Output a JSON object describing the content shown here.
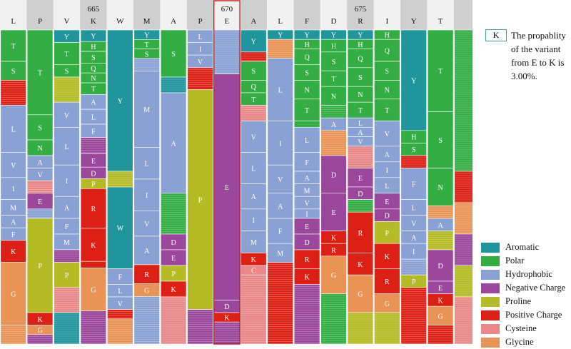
{
  "colors": {
    "Aromatic": "#21959c",
    "Polar": "#34ad44",
    "Hydrophobic": "#8aa2d3",
    "Negative Charge": "#9a479c",
    "Proline": "#b5bb24",
    "Positive Charge": "#dd2015",
    "Cysteine": "#e88888",
    "Glycine": "#e99356",
    "highlight": "#cc1111",
    "header_light": "#f1f1f1",
    "header_dark": "#cfcfcf"
  },
  "aa_groups": {
    "Y": "Aromatic",
    "W": "Aromatic",
    "F": "Hydrophobic",
    "H": "Polar",
    "T": "Polar",
    "S": "Polar",
    "N": "Polar",
    "Q": "Polar",
    "L": "Hydrophobic",
    "V": "Hydrophobic",
    "I": "Hydrophobic",
    "M": "Hydrophobic",
    "A": "Hydrophobic",
    "E": "Negative Charge",
    "D": "Negative Charge",
    "P": "Proline",
    "K": "Positive Charge",
    "R": "Positive Charge",
    "C": "Cysteine",
    "G": "Glycine"
  },
  "legend": [
    "Aromatic",
    "Polar",
    "Hydrophobic",
    "Negative Charge",
    "Proline",
    "Positive Charge",
    "Cysteine",
    "Glycine"
  ],
  "info": {
    "badge": "K",
    "text": "The propablity of the variant from E to K is 3.00%."
  },
  "chart_data": {
    "type": "stacked-bar",
    "highlight_position": 670,
    "residues": [
      {
        "aa": "L",
        "pos": "",
        "segments": [
          {
            "aa": "T",
            "p": 0.1
          },
          {
            "aa": "S",
            "p": 0.06
          },
          {
            "aa": "",
            "p": 0.08
          },
          {
            "aa": "L",
            "p": 0.15
          },
          {
            "aa": "V",
            "p": 0.08
          },
          {
            "aa": "I",
            "p": 0.07
          },
          {
            "aa": "M",
            "p": 0.05
          },
          {
            "aa": "A",
            "p": 0.04
          },
          {
            "aa": "F",
            "p": 0.04
          },
          {
            "aa": "K",
            "p": 0.07
          },
          {
            "aa": "G",
            "p": 0.2
          },
          {
            "aa": "",
            "p": 0.06
          }
        ]
      },
      {
        "aa": "P",
        "pos": "",
        "segments": [
          {
            "aa": "T",
            "p": 0.27
          },
          {
            "aa": "S",
            "p": 0.08
          },
          {
            "aa": "N",
            "p": 0.05
          },
          {
            "aa": "A",
            "p": 0.04
          },
          {
            "aa": "V",
            "p": 0.04
          },
          {
            "aa": "",
            "p": 0.04
          },
          {
            "aa": "E",
            "p": 0.05
          },
          {
            "aa": "",
            "p": 0.03
          },
          {
            "aa": "P",
            "p": 0.3
          },
          {
            "aa": "K",
            "p": 0.04
          },
          {
            "aa": "G",
            "p": 0.03
          },
          {
            "aa": "",
            "p": 0.03
          }
        ]
      },
      {
        "aa": "V",
        "pos": "",
        "segments": [
          {
            "aa": "Y",
            "p": 0.04
          },
          {
            "aa": "T",
            "p": 0.07
          },
          {
            "aa": "S",
            "p": 0.04
          },
          {
            "aa": "",
            "p": 0.08
          },
          {
            "aa": "V",
            "p": 0.08
          },
          {
            "aa": "L",
            "p": 0.12
          },
          {
            "aa": "I",
            "p": 0.1
          },
          {
            "aa": "A",
            "p": 0.07
          },
          {
            "aa": "F",
            "p": 0.05
          },
          {
            "aa": "M",
            "p": 0.05
          },
          {
            "aa": "",
            "p": 0.04
          },
          {
            "aa": "P",
            "p": 0.08
          },
          {
            "aa": "",
            "p": 0.08
          },
          {
            "aa": "",
            "p": 0.1
          }
        ]
      },
      {
        "aa": "K",
        "pos": "665",
        "segments": [
          {
            "aa": "Y",
            "p": 0.035
          },
          {
            "aa": "H",
            "p": 0.03
          },
          {
            "aa": "S",
            "p": 0.035
          },
          {
            "aa": "Q",
            "p": 0.03
          },
          {
            "aa": "N",
            "p": 0.03
          },
          {
            "aa": "T",
            "p": 0.035
          },
          {
            "aa": "A",
            "p": 0.045
          },
          {
            "aa": "L",
            "p": 0.045
          },
          {
            "aa": "F",
            "p": 0.04
          },
          {
            "aa": "",
            "p": 0.05
          },
          {
            "aa": "E",
            "p": 0.04
          },
          {
            "aa": "D",
            "p": 0.035
          },
          {
            "aa": "P",
            "p": 0.03
          },
          {
            "aa": "R",
            "p": 0.12
          },
          {
            "aa": "K",
            "p": 0.1
          },
          {
            "aa": "",
            "p": 0.02
          },
          {
            "aa": "G",
            "p": 0.13
          },
          {
            "aa": "",
            "p": 0.1
          }
        ]
      },
      {
        "aa": "W",
        "pos": "",
        "segments": [
          {
            "aa": "Y",
            "p": 0.45
          },
          {
            "aa": "",
            "p": 0.05
          },
          {
            "aa": "W",
            "p": 0.26
          },
          {
            "aa": "F",
            "p": 0.05
          },
          {
            "aa": "L",
            "p": 0.04
          },
          {
            "aa": "V",
            "p": 0.04
          },
          {
            "aa": "",
            "p": 0.03
          },
          {
            "aa": "",
            "p": 0.08
          }
        ]
      },
      {
        "aa": "M",
        "pos": "",
        "segments": [
          {
            "aa": "Y",
            "p": 0.03
          },
          {
            "aa": "T",
            "p": 0.03
          },
          {
            "aa": "S",
            "p": 0.03
          },
          {
            "aa": "",
            "p": 0.04
          },
          {
            "aa": "M",
            "p": 0.24
          },
          {
            "aa": "L",
            "p": 0.1
          },
          {
            "aa": "I",
            "p": 0.1
          },
          {
            "aa": "V",
            "p": 0.08
          },
          {
            "aa": "A",
            "p": 0.09
          },
          {
            "aa": "R",
            "p": 0.06
          },
          {
            "aa": "G",
            "p": 0.04
          },
          {
            "aa": "",
            "p": 0.15
          }
        ]
      },
      {
        "aa": "A",
        "pos": "",
        "segments": [
          {
            "aa": "S",
            "p": 0.15
          },
          {
            "aa": "",
            "p": 0.05
          },
          {
            "aa": "A",
            "p": 0.32
          },
          {
            "aa": "",
            "p": 0.13
          },
          {
            "aa": "D",
            "p": 0.05
          },
          {
            "aa": "E",
            "p": 0.05
          },
          {
            "aa": "P",
            "p": 0.05
          },
          {
            "aa": "K",
            "p": 0.05
          },
          {
            "aa": "",
            "p": 0.15
          }
        ]
      },
      {
        "aa": "P",
        "pos": "",
        "segments": [
          {
            "aa": "L",
            "p": 0.04
          },
          {
            "aa": "I",
            "p": 0.04
          },
          {
            "aa": "V",
            "p": 0.04
          },
          {
            "aa": "",
            "p": 0.07
          },
          {
            "aa": "P",
            "p": 0.7
          },
          {
            "aa": "",
            "p": 0.11
          }
        ]
      },
      {
        "aa": "E",
        "pos": "670",
        "segments": [
          {
            "aa": "",
            "p": 0.14
          },
          {
            "aa": "E",
            "p": 0.72
          },
          {
            "aa": "D",
            "p": 0.04
          },
          {
            "aa": "K",
            "p": 0.03
          },
          {
            "aa": "",
            "p": 0.07
          }
        ]
      },
      {
        "aa": "A",
        "pos": "",
        "segments": [
          {
            "aa": "Y",
            "p": 0.07
          },
          {
            "aa": "",
            "p": 0.03
          },
          {
            "aa": "S",
            "p": 0.06
          },
          {
            "aa": "Q",
            "p": 0.04
          },
          {
            "aa": "T",
            "p": 0.04
          },
          {
            "aa": "",
            "p": 0.05
          },
          {
            "aa": "V",
            "p": 0.1
          },
          {
            "aa": "L",
            "p": 0.1
          },
          {
            "aa": "A",
            "p": 0.08
          },
          {
            "aa": "I",
            "p": 0.07
          },
          {
            "aa": "M",
            "p": 0.07
          },
          {
            "aa": "K",
            "p": 0.04
          },
          {
            "aa": "C",
            "p": 0.03
          },
          {
            "aa": "",
            "p": 0.22
          }
        ]
      },
      {
        "aa": "L",
        "pos": "",
        "segments": [
          {
            "aa": "Y",
            "p": 0.03
          },
          {
            "aa": "",
            "p": 0.06
          },
          {
            "aa": "L",
            "p": 0.2
          },
          {
            "aa": "I",
            "p": 0.14
          },
          {
            "aa": "V",
            "p": 0.09
          },
          {
            "aa": "A",
            "p": 0.08
          },
          {
            "aa": "F",
            "p": 0.08
          },
          {
            "aa": "M",
            "p": 0.06
          },
          {
            "aa": "",
            "p": 0.26
          }
        ]
      },
      {
        "aa": "F",
        "pos": "",
        "segments": [
          {
            "aa": "Y",
            "p": 0.03
          },
          {
            "aa": "H",
            "p": 0.03
          },
          {
            "aa": "Q",
            "p": 0.05
          },
          {
            "aa": "S",
            "p": 0.05
          },
          {
            "aa": "N",
            "p": 0.06
          },
          {
            "aa": "T",
            "p": 0.07
          },
          {
            "aa": "",
            "p": 0.02
          },
          {
            "aa": "L",
            "p": 0.08
          },
          {
            "aa": "F",
            "p": 0.06
          },
          {
            "aa": "A",
            "p": 0.04
          },
          {
            "aa": "M",
            "p": 0.04
          },
          {
            "aa": "V",
            "p": 0.04
          },
          {
            "aa": "I",
            "p": 0.03
          },
          {
            "aa": "E",
            "p": 0.05
          },
          {
            "aa": "D",
            "p": 0.05
          },
          {
            "aa": "R",
            "p": 0.06
          },
          {
            "aa": "K",
            "p": 0.05
          },
          {
            "aa": "",
            "p": 0.19
          }
        ]
      },
      {
        "aa": "D",
        "pos": "",
        "segments": [
          {
            "aa": "Y",
            "p": 0.03
          },
          {
            "aa": "H",
            "p": 0.04
          },
          {
            "aa": "S",
            "p": 0.06
          },
          {
            "aa": "T",
            "p": 0.05
          },
          {
            "aa": "N",
            "p": 0.06
          },
          {
            "aa": "",
            "p": 0.04
          },
          {
            "aa": "A",
            "p": 0.04
          },
          {
            "aa": "",
            "p": 0.08
          },
          {
            "aa": "D",
            "p": 0.12
          },
          {
            "aa": "E",
            "p": 0.12
          },
          {
            "aa": "K",
            "p": 0.04
          },
          {
            "aa": "R",
            "p": 0.04
          },
          {
            "aa": "G",
            "p": 0.12
          },
          {
            "aa": "",
            "p": 0.16
          }
        ]
      },
      {
        "aa": "R",
        "pos": "675",
        "segments": [
          {
            "aa": "Y",
            "p": 0.03
          },
          {
            "aa": "H",
            "p": 0.03
          },
          {
            "aa": "Q",
            "p": 0.06
          },
          {
            "aa": "S",
            "p": 0.06
          },
          {
            "aa": "N",
            "p": 0.05
          },
          {
            "aa": "T",
            "p": 0.05
          },
          {
            "aa": "L",
            "p": 0.03
          },
          {
            "aa": "A",
            "p": 0.03
          },
          {
            "aa": "V",
            "p": 0.03
          },
          {
            "aa": "",
            "p": 0.07
          },
          {
            "aa": "E",
            "p": 0.06
          },
          {
            "aa": "D",
            "p": 0.04
          },
          {
            "aa": "",
            "p": 0.04
          },
          {
            "aa": "R",
            "p": 0.13
          },
          {
            "aa": "K",
            "p": 0.07
          },
          {
            "aa": "G",
            "p": 0.12
          },
          {
            "aa": "",
            "p": 0.1
          }
        ]
      },
      {
        "aa": "I",
        "pos": "",
        "segments": [
          {
            "aa": "H",
            "p": 0.03
          },
          {
            "aa": "Q",
            "p": 0.07
          },
          {
            "aa": "S",
            "p": 0.06
          },
          {
            "aa": "N",
            "p": 0.06
          },
          {
            "aa": "T",
            "p": 0.07
          },
          {
            "aa": "V",
            "p": 0.08
          },
          {
            "aa": "A",
            "p": 0.05
          },
          {
            "aa": "I",
            "p": 0.05
          },
          {
            "aa": "L",
            "p": 0.05
          },
          {
            "aa": "E",
            "p": 0.05
          },
          {
            "aa": "D",
            "p": 0.04
          },
          {
            "aa": "P",
            "p": 0.07
          },
          {
            "aa": "K",
            "p": 0.08
          },
          {
            "aa": "R",
            "p": 0.08
          },
          {
            "aa": "G",
            "p": 0.06
          },
          {
            "aa": "",
            "p": 0.1
          }
        ]
      },
      {
        "aa": "Y",
        "pos": "",
        "segments": [
          {
            "aa": "Y",
            "p": 0.32
          },
          {
            "aa": "H",
            "p": 0.04
          },
          {
            "aa": "S",
            "p": 0.04
          },
          {
            "aa": "",
            "p": 0.04
          },
          {
            "aa": "F",
            "p": 0.1
          },
          {
            "aa": "L",
            "p": 0.05
          },
          {
            "aa": "V",
            "p": 0.05
          },
          {
            "aa": "A",
            "p": 0.04
          },
          {
            "aa": "I",
            "p": 0.05
          },
          {
            "aa": "",
            "p": 0.05
          },
          {
            "aa": "P",
            "p": 0.04
          },
          {
            "aa": "",
            "p": 0.18
          }
        ]
      },
      {
        "aa": "T",
        "pos": "",
        "segments": [
          {
            "aa": "T",
            "p": 0.26
          },
          {
            "aa": "S",
            "p": 0.18
          },
          {
            "aa": "N",
            "p": 0.12
          },
          {
            "aa": "",
            "p": 0.04
          },
          {
            "aa": "A",
            "p": 0.04
          },
          {
            "aa": "",
            "p": 0.06
          },
          {
            "aa": "D",
            "p": 0.1
          },
          {
            "aa": "E",
            "p": 0.04
          },
          {
            "aa": "K",
            "p": 0.04
          },
          {
            "aa": "G",
            "p": 0.06
          },
          {
            "aa": "",
            "p": 0.06
          }
        ]
      },
      {
        "aa": "",
        "pos": "",
        "segments": [
          {
            "aa": "",
            "p": 0.45
          },
          {
            "aa": "",
            "p": 0.1
          },
          {
            "aa": "",
            "p": 0.1
          },
          {
            "aa": "",
            "p": 0.1
          },
          {
            "aa": "",
            "p": 0.1
          },
          {
            "aa": "",
            "p": 0.15
          }
        ]
      }
    ]
  }
}
